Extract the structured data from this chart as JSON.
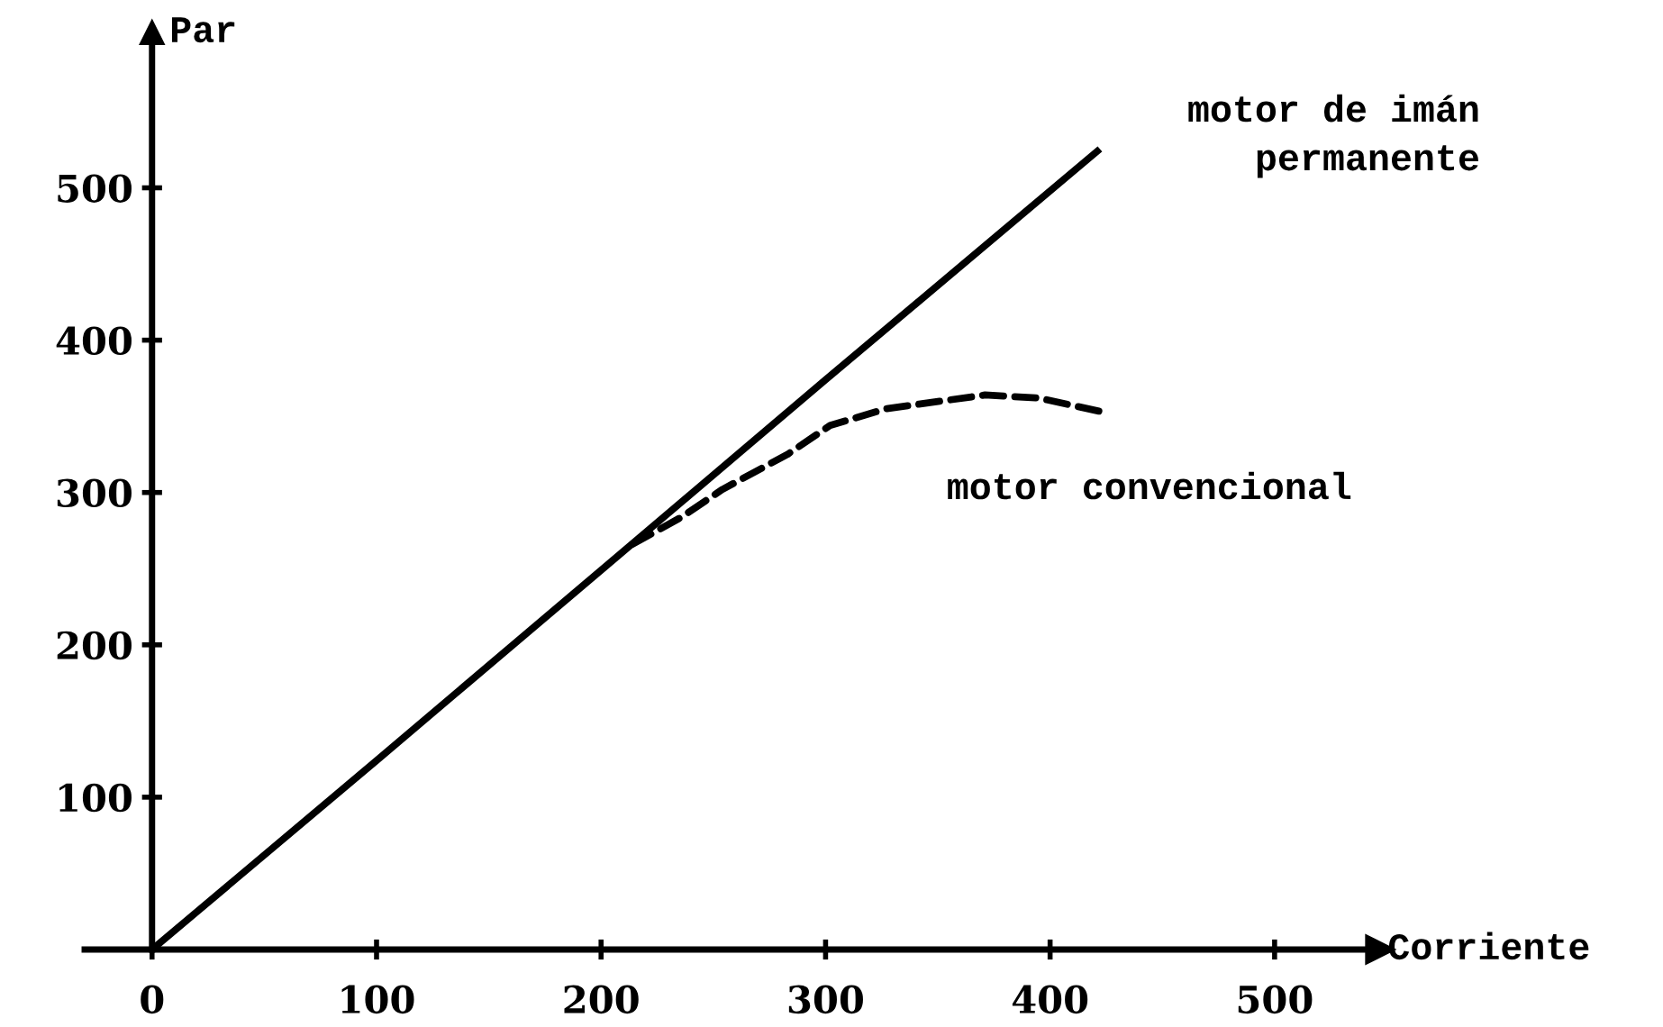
{
  "chart_data": {
    "type": "line",
    "xlabel": "Corriente",
    "ylabel": "Par",
    "xlim": [
      -30,
      547
    ],
    "ylim": [
      0,
      602
    ],
    "xticks": [
      0,
      100,
      200,
      300,
      400,
      500
    ],
    "yticks": [
      {
        "value": 0,
        "label": null
      },
      100,
      200,
      300,
      400,
      500
    ],
    "grid": false,
    "legend": false,
    "marker": "none",
    "series": [
      {
        "name": "motor de imán\npermanente",
        "color": "#000000",
        "line_style": "solid",
        "x": [
          0,
          100,
          200,
          300,
          421
        ],
        "values": [
          0,
          124,
          249,
          374,
          524
        ]
      },
      {
        "name": "motor convencional",
        "color": "#000000",
        "line_style": "dashed",
        "x": [
          214,
          236,
          254,
          283,
          302,
          327,
          371,
          395,
          423
        ],
        "values": [
          266,
          284,
          302,
          325,
          344,
          355,
          364,
          362,
          353
        ]
      }
    ]
  }
}
